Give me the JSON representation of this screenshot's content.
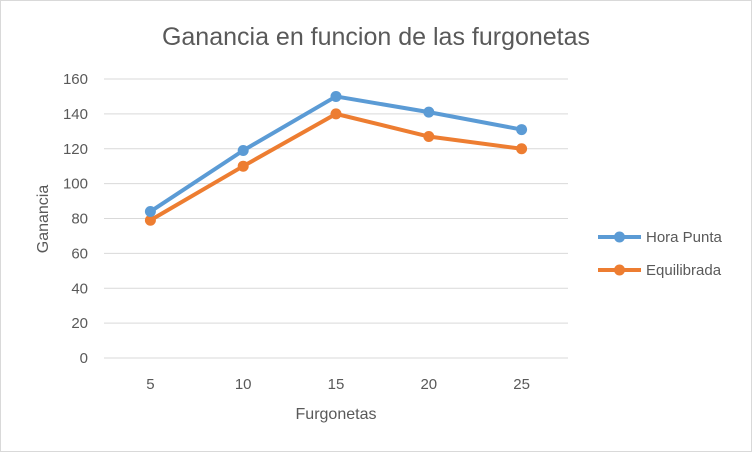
{
  "chart_data": {
    "type": "line",
    "title": "Ganancia en funcion de las furgonetas",
    "xlabel": "Furgonetas",
    "ylabel": "Ganancia",
    "categories": [
      "5",
      "10",
      "15",
      "20",
      "25"
    ],
    "yticks": [
      "0",
      "20",
      "40",
      "60",
      "80",
      "100",
      "120",
      "140",
      "160"
    ],
    "ylim": [
      0,
      160
    ],
    "grid": true,
    "legend_position": "right",
    "series": [
      {
        "name": "Hora Punta",
        "color": "#5b9bd5",
        "values": [
          84,
          119,
          150,
          141,
          131
        ]
      },
      {
        "name": "Equilibrada",
        "color": "#ed7d31",
        "values": [
          79,
          110,
          140,
          127,
          120
        ]
      }
    ]
  }
}
